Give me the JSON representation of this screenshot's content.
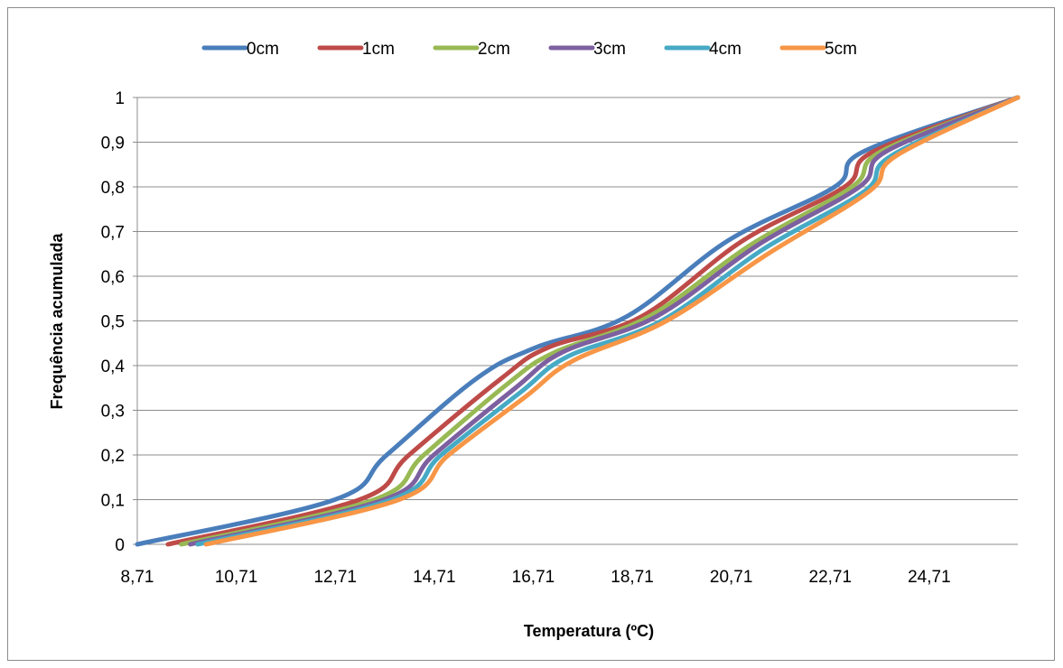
{
  "chart_data": {
    "type": "line",
    "title": "",
    "xlabel": "Temperatura (ºC)",
    "ylabel": "Frequência acumulada",
    "xlim": [
      8.71,
      26.5
    ],
    "ylim": [
      0,
      1
    ],
    "x_ticks": [
      8.71,
      10.71,
      12.71,
      14.71,
      16.71,
      18.71,
      20.71,
      22.71,
      24.71
    ],
    "x_tick_labels": [
      "8,71",
      "10,71",
      "12,71",
      "14,71",
      "16,71",
      "18,71",
      "20,71",
      "22,71",
      "24,71"
    ],
    "y_ticks": [
      0,
      0.1,
      0.2,
      0.3,
      0.4,
      0.5,
      0.6,
      0.7,
      0.8,
      0.9,
      1
    ],
    "y_tick_labels": [
      "0",
      "0,1",
      "0,2",
      "0,3",
      "0,4",
      "0,5",
      "0,6",
      "0,7",
      "0,8",
      "0,9",
      "1"
    ],
    "grid": "horizontal",
    "legend_position": "top",
    "series": [
      {
        "name": "0cm",
        "color": "#4a7ebb",
        "points": [
          [
            8.71,
            0
          ],
          [
            12.7,
            0.1
          ],
          [
            13.75,
            0.2
          ],
          [
            15.55,
            0.37
          ],
          [
            16.75,
            0.44
          ],
          [
            18.6,
            0.51
          ],
          [
            20.65,
            0.68
          ],
          [
            22.8,
            0.8
          ],
          [
            23.4,
            0.88
          ],
          [
            26.5,
            1
          ]
        ]
      },
      {
        "name": "1cm",
        "color": "#be4b48",
        "points": [
          [
            9.33,
            0
          ],
          [
            13.2,
            0.1
          ],
          [
            14.2,
            0.2
          ],
          [
            16.05,
            0.37
          ],
          [
            17.0,
            0.44
          ],
          [
            18.9,
            0.51
          ],
          [
            20.95,
            0.68
          ],
          [
            23.0,
            0.8
          ],
          [
            23.6,
            0.88
          ],
          [
            26.5,
            1
          ]
        ]
      },
      {
        "name": "2cm",
        "color": "#98b954",
        "points": [
          [
            9.6,
            0
          ],
          [
            13.5,
            0.1
          ],
          [
            14.5,
            0.2
          ],
          [
            16.2,
            0.36
          ],
          [
            17.15,
            0.43
          ],
          [
            19.05,
            0.51
          ],
          [
            21.1,
            0.67
          ],
          [
            23.15,
            0.8
          ],
          [
            23.75,
            0.88
          ],
          [
            26.5,
            1
          ]
        ]
      },
      {
        "name": "3cm",
        "color": "#7d60a0",
        "points": [
          [
            9.78,
            0
          ],
          [
            13.7,
            0.1
          ],
          [
            14.7,
            0.2
          ],
          [
            16.35,
            0.35
          ],
          [
            17.3,
            0.43
          ],
          [
            19.2,
            0.51
          ],
          [
            21.25,
            0.67
          ],
          [
            23.3,
            0.8
          ],
          [
            23.85,
            0.88
          ],
          [
            26.5,
            1
          ]
        ]
      },
      {
        "name": "4cm",
        "color": "#46aac5",
        "points": [
          [
            9.93,
            0
          ],
          [
            13.85,
            0.1
          ],
          [
            14.85,
            0.2
          ],
          [
            16.45,
            0.34
          ],
          [
            17.4,
            0.42
          ],
          [
            19.3,
            0.5
          ],
          [
            21.35,
            0.66
          ],
          [
            23.4,
            0.79
          ],
          [
            23.95,
            0.87
          ],
          [
            26.5,
            1
          ]
        ]
      },
      {
        "name": "5cm",
        "color": "#f79646",
        "points": [
          [
            10.1,
            0
          ],
          [
            14.0,
            0.1
          ],
          [
            15.0,
            0.2
          ],
          [
            16.55,
            0.33
          ],
          [
            17.5,
            0.41
          ],
          [
            19.4,
            0.5
          ],
          [
            21.45,
            0.65
          ],
          [
            23.5,
            0.79
          ],
          [
            24.05,
            0.87
          ],
          [
            26.5,
            1
          ]
        ]
      }
    ]
  }
}
